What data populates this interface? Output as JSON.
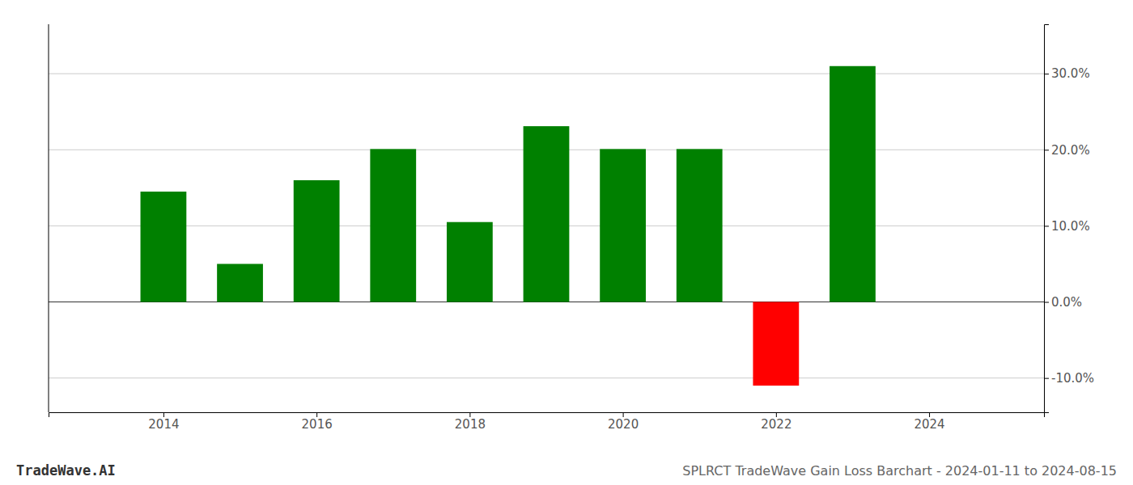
{
  "chart_data": {
    "type": "bar",
    "title": "SPLRCT TradeWave Gain Loss Barchart - 2024-01-11 to 2024-08-15",
    "annotations": [
      "TradeWave.AI"
    ],
    "x": [
      2014,
      2015,
      2016,
      2017,
      2018,
      2019,
      2020,
      2021,
      2022,
      2023
    ],
    "values": [
      0.145,
      0.05,
      0.16,
      0.201,
      0.105,
      0.231,
      0.201,
      0.201,
      -0.11,
      0.31
    ],
    "colors": [
      "#008000",
      "#008000",
      "#008000",
      "#008000",
      "#008000",
      "#008000",
      "#008000",
      "#008000",
      "#ff0000",
      "#008000"
    ],
    "xlim": [
      2012.5,
      2025.5
    ],
    "xticks": [
      2014,
      2016,
      2018,
      2020,
      2022,
      2024
    ],
    "ylim": [
      -0.145,
      0.365
    ],
    "yticks": [
      {
        "value": -0.1,
        "label": "-10.0%"
      },
      {
        "value": 0.0,
        "label": "0.0%"
      },
      {
        "value": 0.1,
        "label": "10.0%"
      },
      {
        "value": 0.2,
        "label": "20.0%"
      },
      {
        "value": 0.3,
        "label": "30.0%"
      }
    ],
    "grid": true
  }
}
